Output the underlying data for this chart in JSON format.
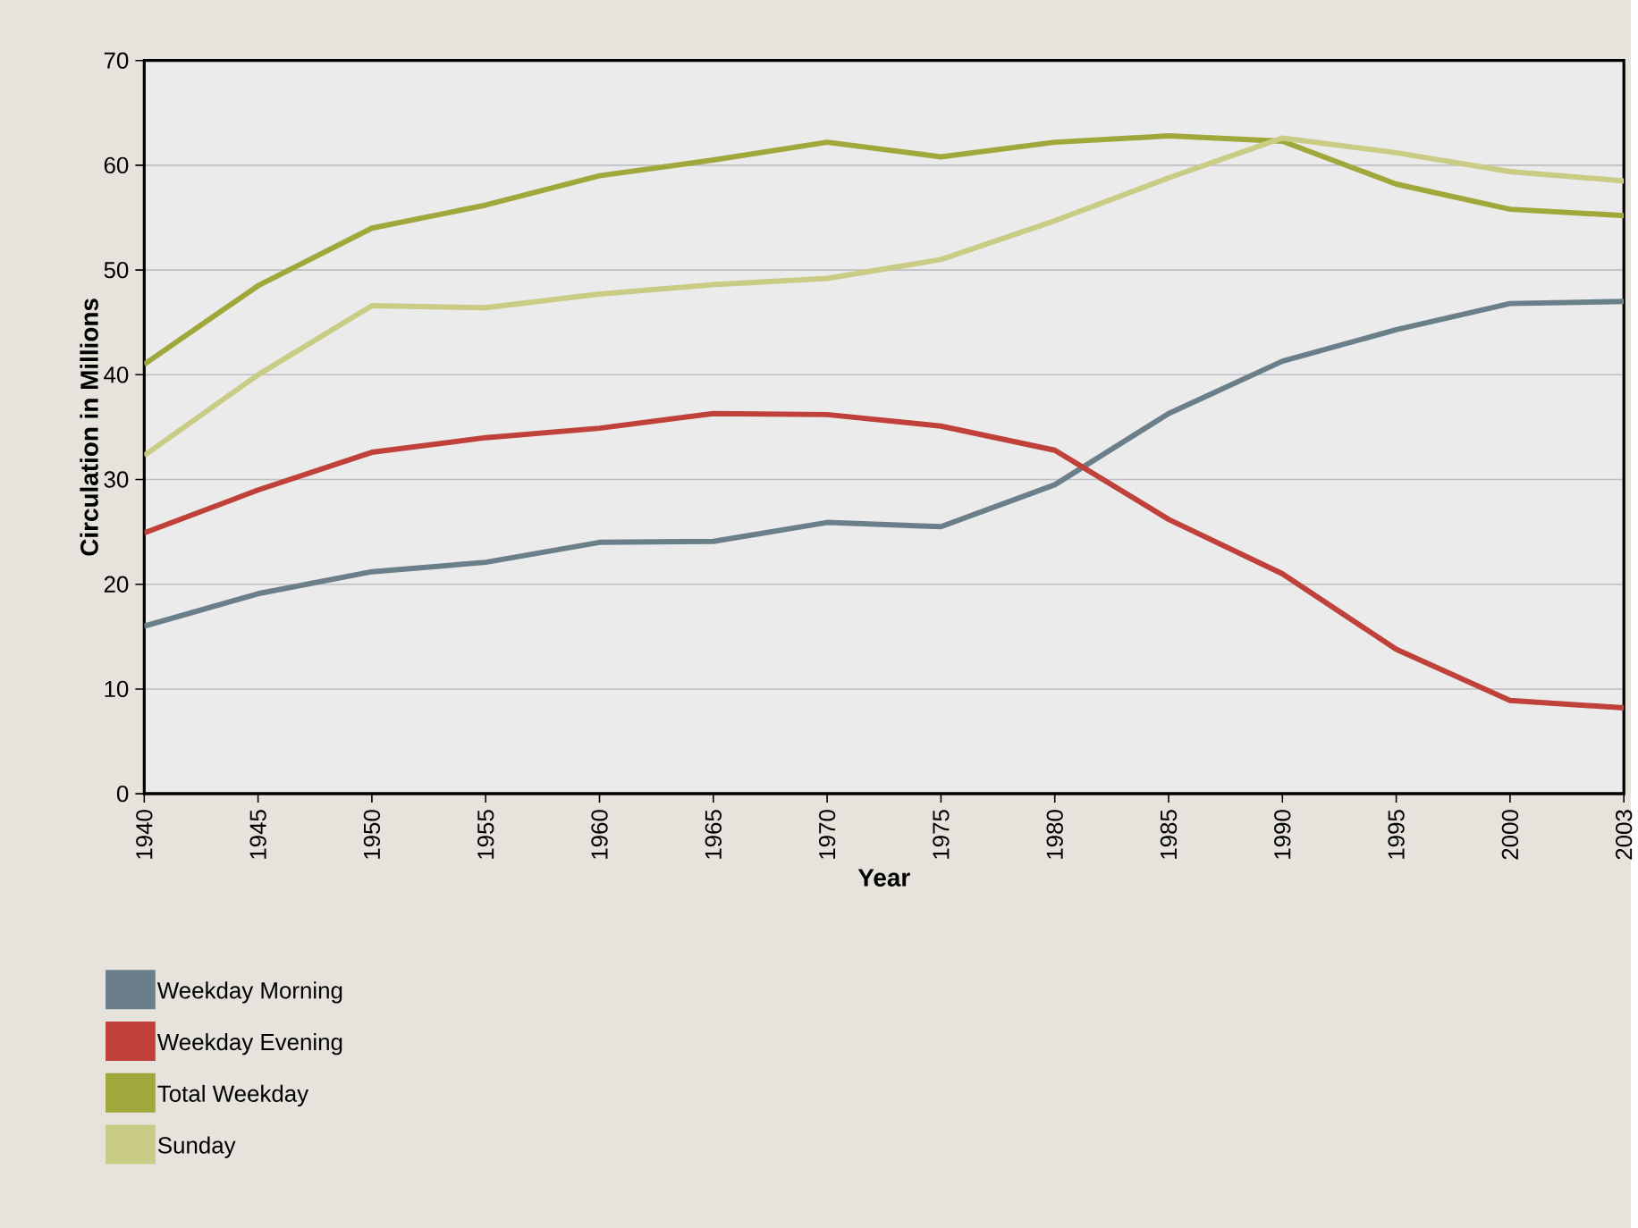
{
  "chart_data": {
    "type": "line",
    "xlabel": "Year",
    "ylabel": "Circulation in Millions",
    "categories": [
      "1940",
      "1945",
      "1950",
      "1955",
      "1960",
      "1965",
      "1970",
      "1975",
      "1980",
      "1985",
      "1990",
      "1995",
      "2000",
      "2003"
    ],
    "series": [
      {
        "name": "Weekday Morning",
        "color": "#6b7f8a",
        "values": [
          16,
          19.1,
          21.2,
          22.1,
          24,
          24.1,
          25.9,
          25.5,
          29.5,
          36.3,
          41.3,
          44.3,
          46.8,
          47
        ]
      },
      {
        "name": "Weekday Evening",
        "color": "#c0403a",
        "values": [
          24.9,
          29,
          32.6,
          34,
          34.9,
          36.3,
          36.2,
          35.1,
          32.8,
          26.2,
          21,
          13.8,
          8.9,
          8.2
        ]
      },
      {
        "name": "Total Weekday",
        "color": "#a0a83c",
        "values": [
          41,
          48.5,
          54,
          56.2,
          59,
          60.5,
          62.2,
          60.8,
          62.2,
          62.8,
          62.3,
          58.2,
          55.8,
          55.2
        ]
      },
      {
        "name": "Sunday",
        "color": "#c8cc84",
        "values": [
          32.3,
          40,
          46.6,
          46.4,
          47.7,
          48.6,
          49.2,
          51,
          54.7,
          58.8,
          62.6,
          61.2,
          59.4,
          58.5
        ]
      }
    ],
    "ylim": [
      0,
      70
    ],
    "yticks": [
      0,
      10,
      20,
      30,
      40,
      50,
      60,
      70
    ],
    "grid": "y",
    "legend": "bottom left",
    "marker": "none",
    "line_style": "solid"
  }
}
